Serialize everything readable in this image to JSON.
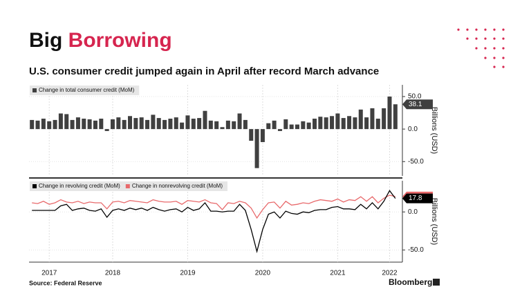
{
  "header": {
    "title_part1": "Big",
    "title_part2": "Borrowing",
    "subtitle": "U.S. consumer credit jumped again in April after record March advance",
    "source": "Source: Federal Reserve",
    "brand": "Bloomberg"
  },
  "chart_data": [
    {
      "type": "bar",
      "axis_label": "Billions (USD)",
      "series": [
        {
          "name": "Change in total consumer credit (MoM)",
          "color": "#404040",
          "values": [
            14,
            13,
            16,
            12,
            14,
            24,
            23,
            14,
            18,
            16,
            15,
            13,
            16,
            -3,
            15,
            18,
            14,
            20,
            17,
            18,
            14,
            22,
            17,
            14,
            16,
            18,
            10,
            21,
            16,
            17,
            28,
            13,
            12,
            3,
            13,
            12,
            24,
            14,
            -18,
            -60,
            -20,
            9,
            13,
            -3,
            15,
            7,
            7,
            12,
            10,
            16,
            19,
            18,
            20,
            24,
            17,
            20,
            18,
            30,
            18,
            32,
            16,
            32,
            50,
            38.1
          ]
        }
      ],
      "ylim": [
        -72,
        68
      ],
      "yticks": [
        {
          "value": 50,
          "label": "50.0"
        },
        {
          "value": 0,
          "label": "0.0"
        },
        {
          "value": -50,
          "label": "-50.0"
        }
      ],
      "grid": true
    },
    {
      "type": "line",
      "axis_label": "Billions (USD)",
      "categories": [
        null,
        null,
        null,
        "2017",
        null,
        null,
        null,
        null,
        null,
        null,
        null,
        null,
        null,
        null,
        "2018",
        null,
        null,
        null,
        null,
        null,
        null,
        null,
        null,
        null,
        null,
        null,
        null,
        "2019",
        null,
        null,
        null,
        null,
        null,
        null,
        null,
        null,
        null,
        null,
        null,
        null,
        "2020",
        null,
        null,
        null,
        null,
        null,
        null,
        null,
        null,
        null,
        null,
        null,
        null,
        "2021",
        null,
        null,
        null,
        null,
        null,
        null,
        null,
        null,
        "2022",
        null
      ],
      "series": [
        {
          "name": "Change in revolving credit (MoM)",
          "color": "#000000",
          "values": [
            2,
            2,
            2,
            2,
            2,
            8,
            10,
            2,
            4,
            5,
            2,
            1,
            4,
            -7,
            2,
            4,
            2,
            5,
            3,
            5,
            2,
            6,
            3,
            1,
            3,
            4,
            0,
            6,
            2,
            4,
            12,
            1,
            1,
            0,
            1,
            1,
            10,
            2,
            -23,
            -52,
            -23,
            -3,
            0,
            -8,
            1,
            -2,
            -3,
            0,
            -1,
            2,
            3,
            3,
            6,
            7,
            4,
            4,
            3,
            10,
            4,
            12,
            4,
            14,
            28,
            17.8
          ]
        },
        {
          "name": "Change in nonrevolving credit (MoM)",
          "color": "#e8696b",
          "values": [
            12,
            11,
            14,
            10,
            12,
            16,
            13,
            12,
            14,
            11,
            13,
            12,
            12,
            4,
            13,
            14,
            12,
            15,
            14,
            13,
            12,
            16,
            14,
            13,
            13,
            14,
            10,
            15,
            14,
            13,
            16,
            12,
            11,
            3,
            12,
            11,
            14,
            12,
            5,
            -8,
            3,
            12,
            13,
            5,
            14,
            9,
            10,
            12,
            11,
            14,
            16,
            15,
            14,
            17,
            13,
            16,
            15,
            20,
            14,
            20,
            12,
            18,
            22,
            20.3
          ]
        }
      ],
      "ylim": [
        -66,
        41
      ],
      "yticks": [
        {
          "value": 0,
          "label": "0.0"
        },
        {
          "value": -50,
          "label": "-50.0"
        }
      ],
      "grid": true
    }
  ]
}
